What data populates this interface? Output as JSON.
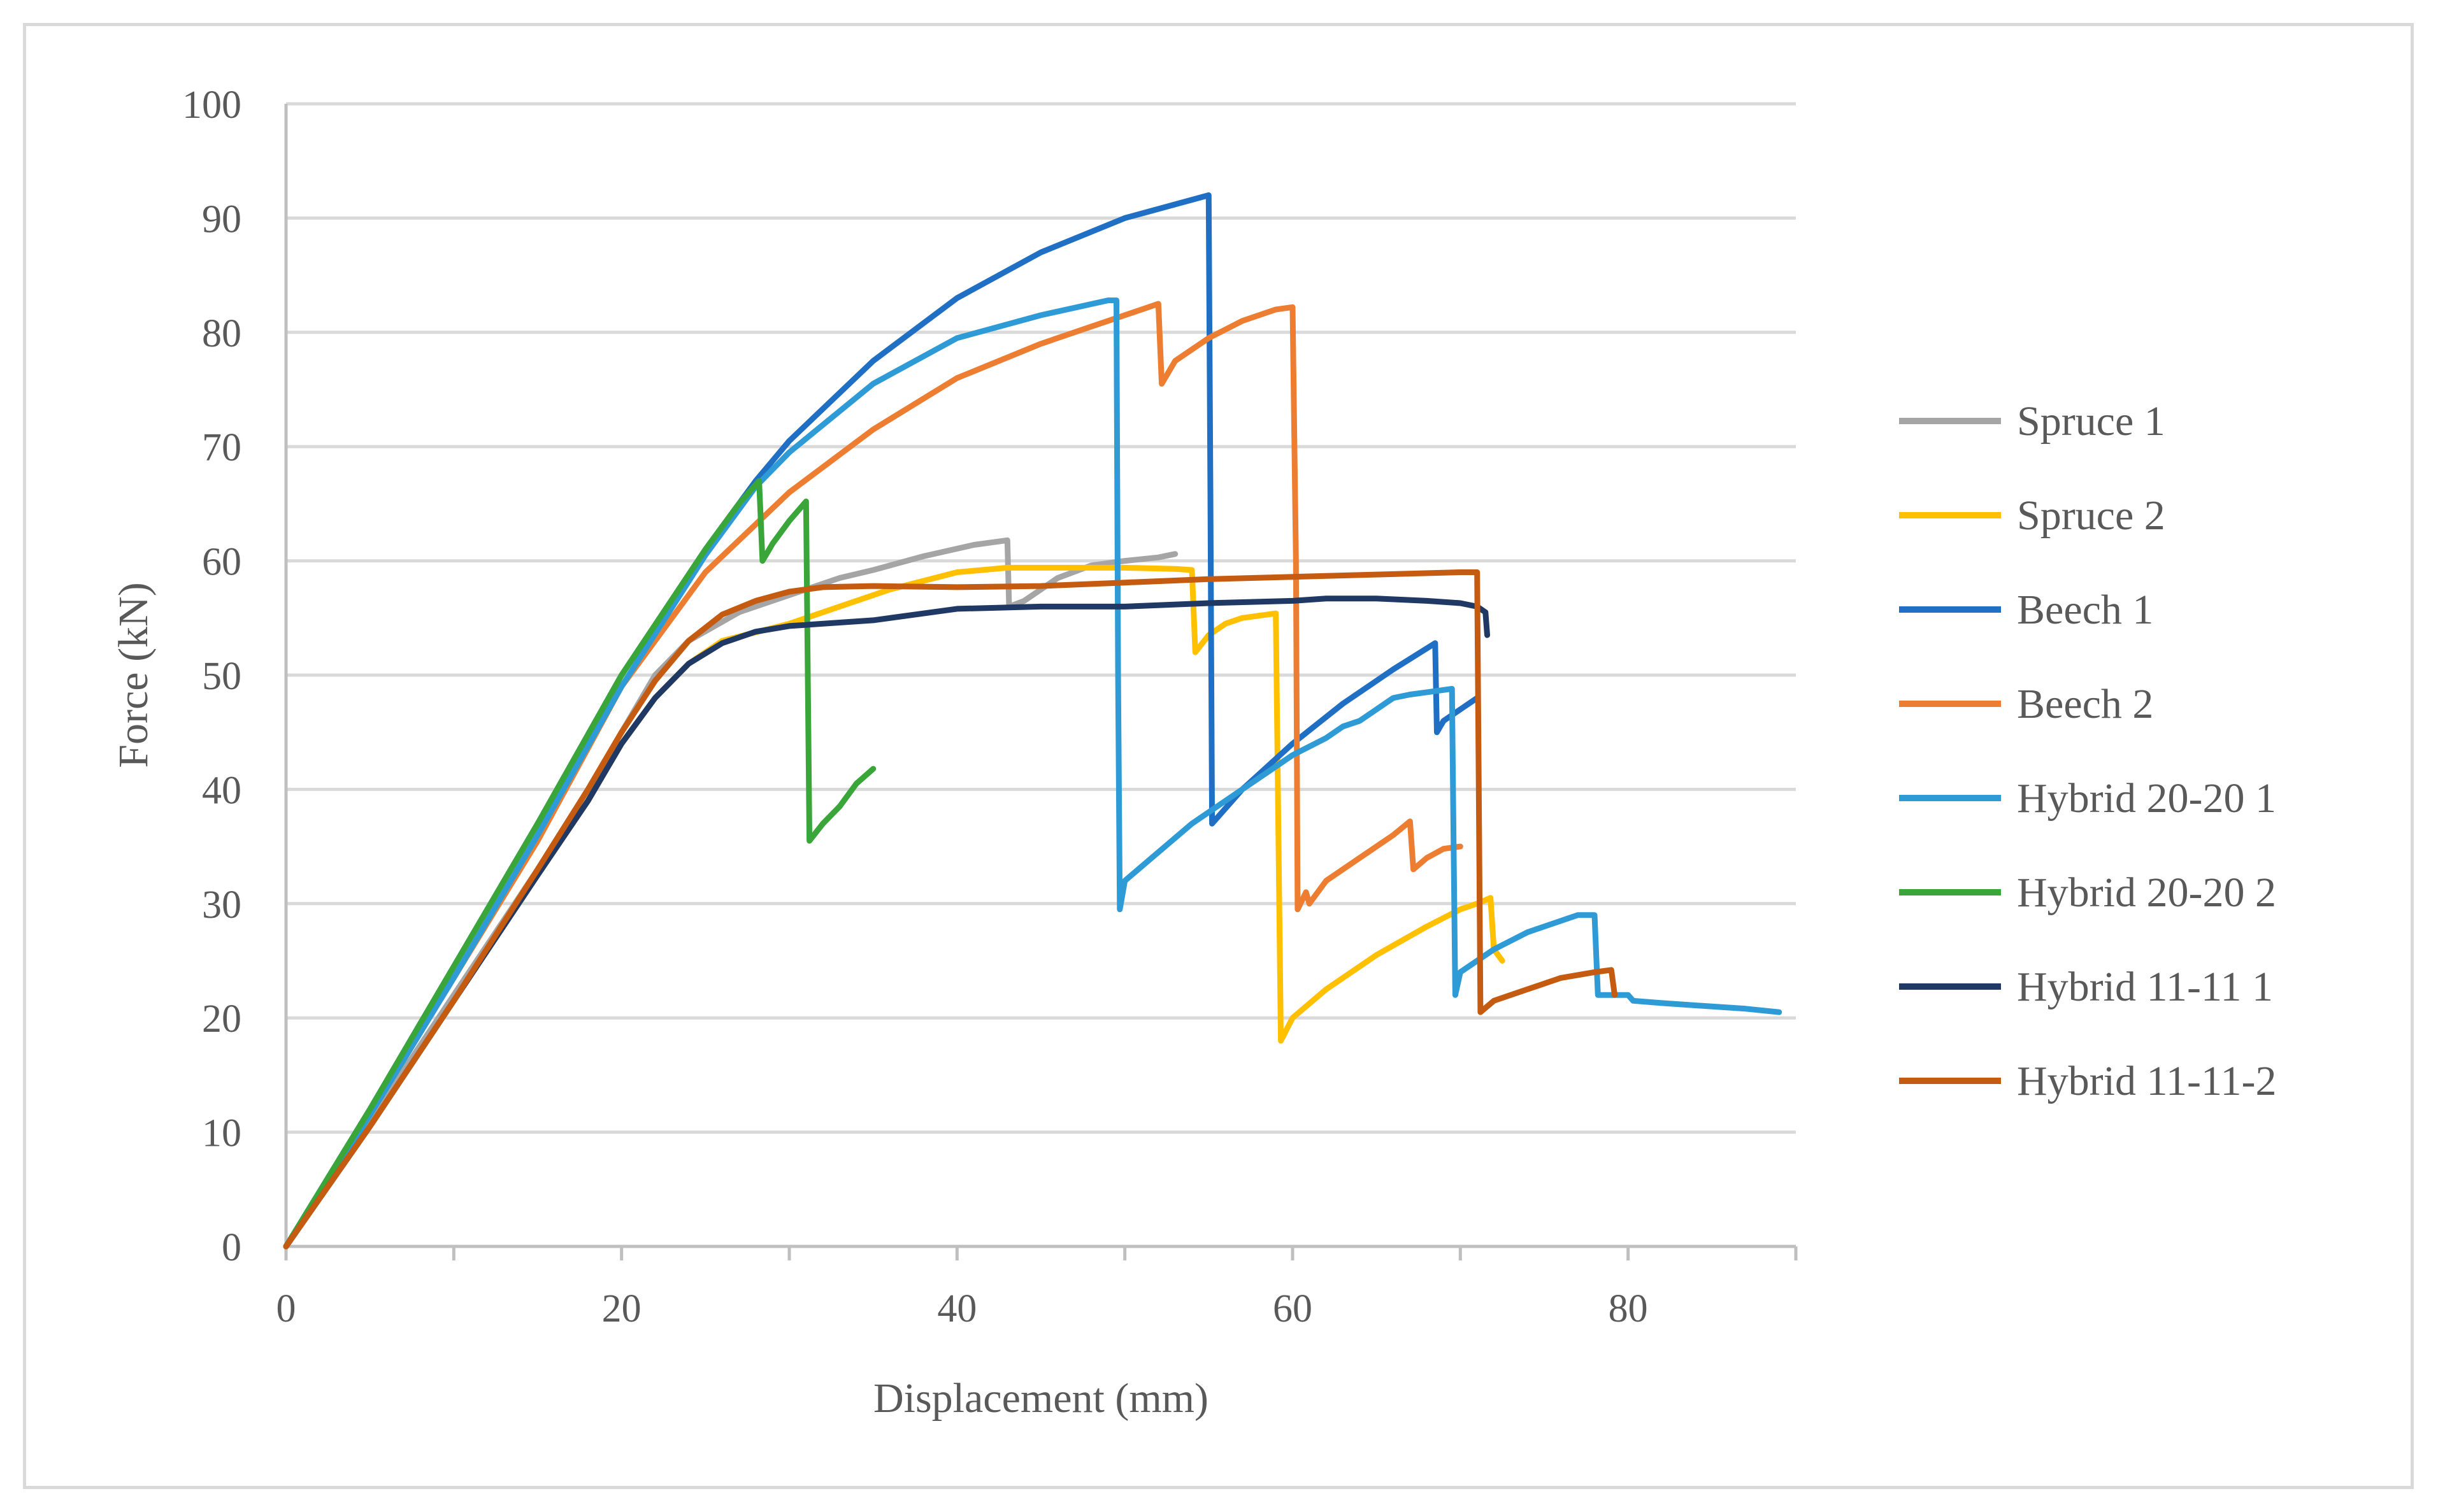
{
  "chart_data": {
    "type": "line",
    "title": "",
    "xlabel": "Displacement (mm)",
    "ylabel": "Force (kN)",
    "xlim": [
      0,
      90
    ],
    "ylim": [
      0,
      100
    ],
    "xticks": [
      "0",
      "20",
      "40",
      "60",
      "80"
    ],
    "yticks": [
      "0",
      "10",
      "20",
      "30",
      "40",
      "50",
      "60",
      "70",
      "80",
      "90",
      "100"
    ],
    "grid": "horizontal",
    "legend_position": "right",
    "series": [
      {
        "name": "Spruce 1",
        "color": "#a5a5a5",
        "points": [
          [
            0,
            0
          ],
          [
            5,
            11
          ],
          [
            10,
            22
          ],
          [
            15,
            33
          ],
          [
            18,
            40
          ],
          [
            20,
            45
          ],
          [
            22,
            50
          ],
          [
            24,
            53
          ],
          [
            27,
            55.5
          ],
          [
            30,
            57
          ],
          [
            33,
            58.5
          ],
          [
            35,
            59.2
          ],
          [
            38,
            60.4
          ],
          [
            41,
            61.4
          ],
          [
            43,
            61.8
          ],
          [
            43.1,
            56
          ],
          [
            44,
            56.5
          ],
          [
            46,
            58.5
          ],
          [
            48,
            59.6
          ],
          [
            50,
            60
          ],
          [
            52,
            60.3
          ],
          [
            53,
            60.6
          ]
        ]
      },
      {
        "name": "Spruce 2",
        "color": "#ffc000",
        "points": [
          [
            0,
            0
          ],
          [
            5,
            10.5
          ],
          [
            10,
            21.5
          ],
          [
            15,
            32.5
          ],
          [
            18,
            39
          ],
          [
            20,
            44
          ],
          [
            22,
            48
          ],
          [
            24,
            51
          ],
          [
            26,
            53
          ],
          [
            30,
            54.5
          ],
          [
            33,
            56
          ],
          [
            36,
            57.5
          ],
          [
            40,
            59
          ],
          [
            43,
            59.4
          ],
          [
            46,
            59.4
          ],
          [
            50,
            59.4
          ],
          [
            53,
            59.3
          ],
          [
            54,
            59.2
          ],
          [
            54.2,
            52
          ],
          [
            55,
            53.5
          ],
          [
            56,
            54.5
          ],
          [
            57,
            55
          ],
          [
            58,
            55.2
          ],
          [
            59,
            55.4
          ],
          [
            59.3,
            18
          ],
          [
            60,
            20
          ],
          [
            62,
            22.5
          ],
          [
            65,
            25.5
          ],
          [
            68,
            28
          ],
          [
            70,
            29.5
          ],
          [
            71,
            30
          ],
          [
            71.8,
            30.5
          ],
          [
            72,
            26
          ],
          [
            72.5,
            25
          ]
        ]
      },
      {
        "name": "Beech 1",
        "color": "#1f6fc4",
        "points": [
          [
            0,
            0
          ],
          [
            5,
            12
          ],
          [
            10,
            24.5
          ],
          [
            15,
            37
          ],
          [
            20,
            50
          ],
          [
            25,
            61
          ],
          [
            28,
            67
          ],
          [
            30,
            70.5
          ],
          [
            35,
            77.5
          ],
          [
            40,
            83
          ],
          [
            45,
            87
          ],
          [
            50,
            90
          ],
          [
            55,
            92
          ],
          [
            55.1,
            66
          ],
          [
            55.2,
            37
          ],
          [
            57,
            40
          ],
          [
            60,
            44
          ],
          [
            63,
            47.5
          ],
          [
            66,
            50.5
          ],
          [
            68.5,
            52.8
          ],
          [
            68.6,
            45
          ],
          [
            69,
            46
          ],
          [
            70,
            47
          ],
          [
            71,
            48
          ]
        ]
      },
      {
        "name": "Beech 2",
        "color": "#ed7d31",
        "points": [
          [
            0,
            0
          ],
          [
            5,
            11.5
          ],
          [
            10,
            23.5
          ],
          [
            15,
            35.5
          ],
          [
            20,
            49
          ],
          [
            25,
            59
          ],
          [
            30,
            66
          ],
          [
            35,
            71.5
          ],
          [
            40,
            76
          ],
          [
            45,
            79
          ],
          [
            48,
            80.5
          ],
          [
            50,
            81.5
          ],
          [
            52,
            82.5
          ],
          [
            52.2,
            75.5
          ],
          [
            53,
            77.5
          ],
          [
            55,
            79.5
          ],
          [
            57,
            81
          ],
          [
            59,
            82
          ],
          [
            60,
            82.2
          ],
          [
            60.2,
            60
          ],
          [
            60.3,
            29.5
          ],
          [
            60.8,
            31
          ],
          [
            61,
            30
          ],
          [
            62,
            32
          ],
          [
            64,
            34
          ],
          [
            66,
            36
          ],
          [
            67,
            37.2
          ],
          [
            67.2,
            33
          ],
          [
            68,
            34
          ],
          [
            69,
            34.8
          ],
          [
            70,
            35
          ]
        ]
      },
      {
        "name": "Hybrid 20-20 1",
        "color": "#2e9bd6",
        "points": [
          [
            0,
            0
          ],
          [
            5,
            11.5
          ],
          [
            10,
            23.5
          ],
          [
            15,
            36
          ],
          [
            20,
            49
          ],
          [
            25,
            60.5
          ],
          [
            28,
            66.5
          ],
          [
            30,
            69.5
          ],
          [
            35,
            75.5
          ],
          [
            40,
            79.5
          ],
          [
            45,
            81.5
          ],
          [
            49,
            82.8
          ],
          [
            49.5,
            82.8
          ],
          [
            49.6,
            50
          ],
          [
            49.7,
            29.5
          ],
          [
            50,
            32
          ],
          [
            52,
            34.5
          ],
          [
            54,
            37
          ],
          [
            56,
            39
          ],
          [
            58,
            41
          ],
          [
            60,
            43
          ],
          [
            62,
            44.5
          ],
          [
            63,
            45.5
          ],
          [
            64,
            46
          ],
          [
            65,
            47
          ],
          [
            66,
            48
          ],
          [
            67,
            48.3
          ],
          [
            68,
            48.5
          ],
          [
            69,
            48.7
          ],
          [
            69.5,
            48.8
          ],
          [
            69.6,
            35
          ],
          [
            69.7,
            22
          ],
          [
            70,
            24
          ],
          [
            72,
            26
          ],
          [
            74,
            27.5
          ],
          [
            76,
            28.5
          ],
          [
            77,
            29
          ],
          [
            78,
            29
          ],
          [
            78.2,
            22
          ],
          [
            79,
            22
          ],
          [
            80,
            22
          ],
          [
            80.3,
            21.5
          ],
          [
            82,
            21.3
          ],
          [
            85,
            21
          ],
          [
            87,
            20.8
          ],
          [
            89,
            20.5
          ]
        ]
      },
      {
        "name": "Hybrid 20-20 2",
        "color": "#3aa63a",
        "points": [
          [
            0,
            0
          ],
          [
            5,
            12
          ],
          [
            10,
            24.5
          ],
          [
            15,
            37
          ],
          [
            20,
            50
          ],
          [
            25,
            61
          ],
          [
            27,
            65
          ],
          [
            28.2,
            67
          ],
          [
            28.4,
            60
          ],
          [
            29,
            61.5
          ],
          [
            30,
            63.5
          ],
          [
            31,
            65.2
          ],
          [
            31.2,
            35.5
          ],
          [
            32,
            37
          ],
          [
            33,
            38.5
          ],
          [
            34,
            40.5
          ],
          [
            35,
            41.8
          ]
        ]
      },
      {
        "name": "Hybrid 11-11 1",
        "color": "#1f3864",
        "points": [
          [
            0,
            0
          ],
          [
            5,
            10.5
          ],
          [
            10,
            21.5
          ],
          [
            15,
            32.5
          ],
          [
            18,
            39
          ],
          [
            20,
            44
          ],
          [
            22,
            48
          ],
          [
            24,
            51
          ],
          [
            26,
            52.8
          ],
          [
            28,
            53.8
          ],
          [
            30,
            54.3
          ],
          [
            35,
            54.8
          ],
          [
            40,
            55.8
          ],
          [
            45,
            56
          ],
          [
            50,
            56
          ],
          [
            55,
            56.3
          ],
          [
            60,
            56.5
          ],
          [
            62,
            56.7
          ],
          [
            65,
            56.7
          ],
          [
            68,
            56.5
          ],
          [
            70,
            56.3
          ],
          [
            71,
            56
          ],
          [
            71.5,
            55.5
          ],
          [
            71.6,
            53.5
          ]
        ]
      },
      {
        "name": "Hybrid 11-11-2",
        "color": "#c55a11",
        "points": [
          [
            0,
            0
          ],
          [
            5,
            10.5
          ],
          [
            10,
            21.5
          ],
          [
            15,
            33
          ],
          [
            18,
            40
          ],
          [
            20,
            45
          ],
          [
            22,
            49.5
          ],
          [
            24,
            53
          ],
          [
            26,
            55.3
          ],
          [
            28,
            56.5
          ],
          [
            30,
            57.3
          ],
          [
            32,
            57.7
          ],
          [
            35,
            57.8
          ],
          [
            40,
            57.7
          ],
          [
            45,
            57.8
          ],
          [
            50,
            58.1
          ],
          [
            55,
            58.4
          ],
          [
            60,
            58.6
          ],
          [
            65,
            58.8
          ],
          [
            70,
            59
          ],
          [
            71,
            59
          ],
          [
            71.1,
            40
          ],
          [
            71.2,
            20.5
          ],
          [
            72,
            21.5
          ],
          [
            74,
            22.5
          ],
          [
            76,
            23.5
          ],
          [
            78,
            24
          ],
          [
            79,
            24.2
          ],
          [
            79.2,
            22
          ]
        ]
      }
    ]
  }
}
